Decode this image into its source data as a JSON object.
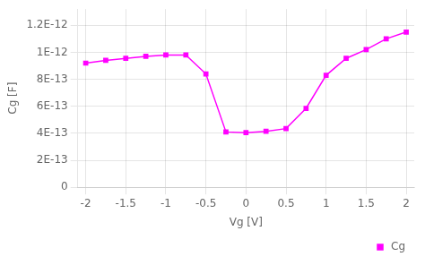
{
  "chart_data": {
    "type": "line",
    "x_label": "Vg [V]",
    "y_label": "Cg [F]",
    "x": [
      -2.0,
      -1.75,
      -1.5,
      -1.25,
      -1.0,
      -0.75,
      -0.5,
      -0.25,
      0.0,
      0.25,
      0.5,
      0.75,
      1.0,
      1.25,
      1.5,
      1.75,
      2.0
    ],
    "series": [
      {
        "name": "Cg",
        "color": "#FF00FF",
        "marker": "square",
        "values": [
          9.2e-13,
          9.4e-13,
          9.55e-13,
          9.7e-13,
          9.8e-13,
          9.8e-13,
          8.4e-13,
          4.1e-13,
          4.05e-13,
          4.15e-13,
          4.35e-13,
          5.85e-13,
          8.3e-13,
          9.55e-13,
          1.02e-12,
          1.1e-12,
          1.15e-12
        ]
      }
    ],
    "xlim": [
      -2.1,
      2.1
    ],
    "ylim": [
      0,
      1.32e-12
    ],
    "xticks": [
      -2,
      -1.5,
      -1,
      -0.5,
      0,
      0.5,
      1,
      1.5,
      2
    ],
    "yticks": [
      0,
      {
        "value": 2e-13,
        "label": "2E-13"
      },
      {
        "value": 4e-13,
        "label": "4E-13"
      },
      {
        "value": 6e-13,
        "label": "6E-13"
      },
      {
        "value": 8e-13,
        "label": "8E-13"
      },
      {
        "value": 1e-12,
        "label": "1E-12"
      },
      {
        "value": 1.2e-12,
        "label": "1.2E-12"
      }
    ],
    "grid": true,
    "legend": "lower right"
  }
}
